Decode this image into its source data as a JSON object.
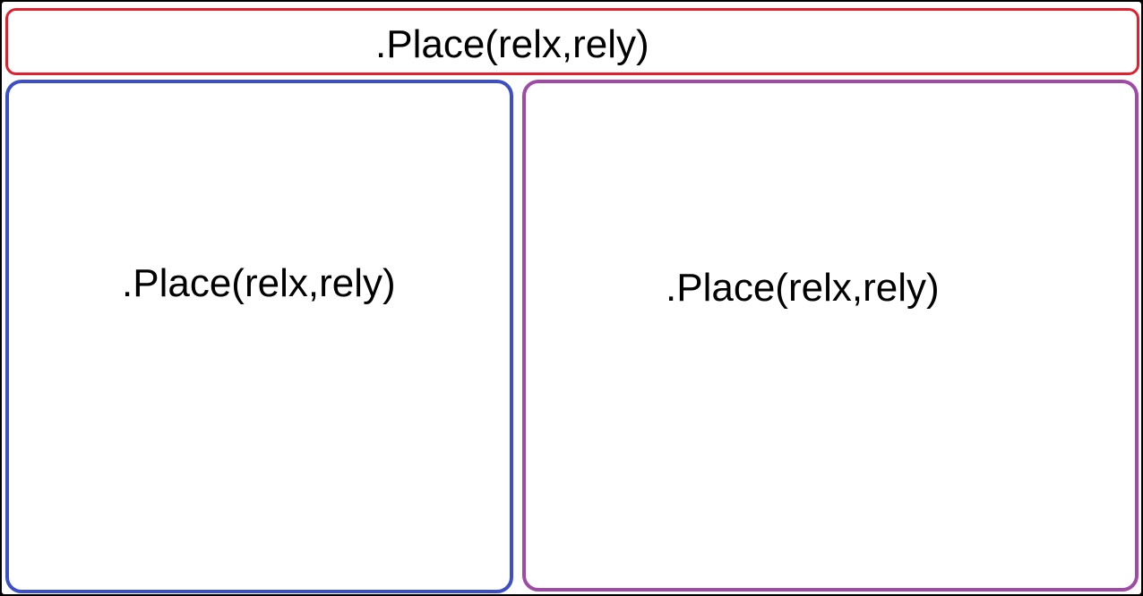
{
  "colors": {
    "outer_border": "#000000",
    "top_region_border": "#e0202e",
    "left_region_border": "#3c4fc8",
    "right_region_border": "#a04aa8",
    "text": "#000000",
    "background": "#ffffff"
  },
  "regions": {
    "top": {
      "label": ".Place(relx,rely)"
    },
    "left": {
      "label": ".Place(relx,rely)"
    },
    "right": {
      "label": ".Place(relx,rely)"
    }
  }
}
